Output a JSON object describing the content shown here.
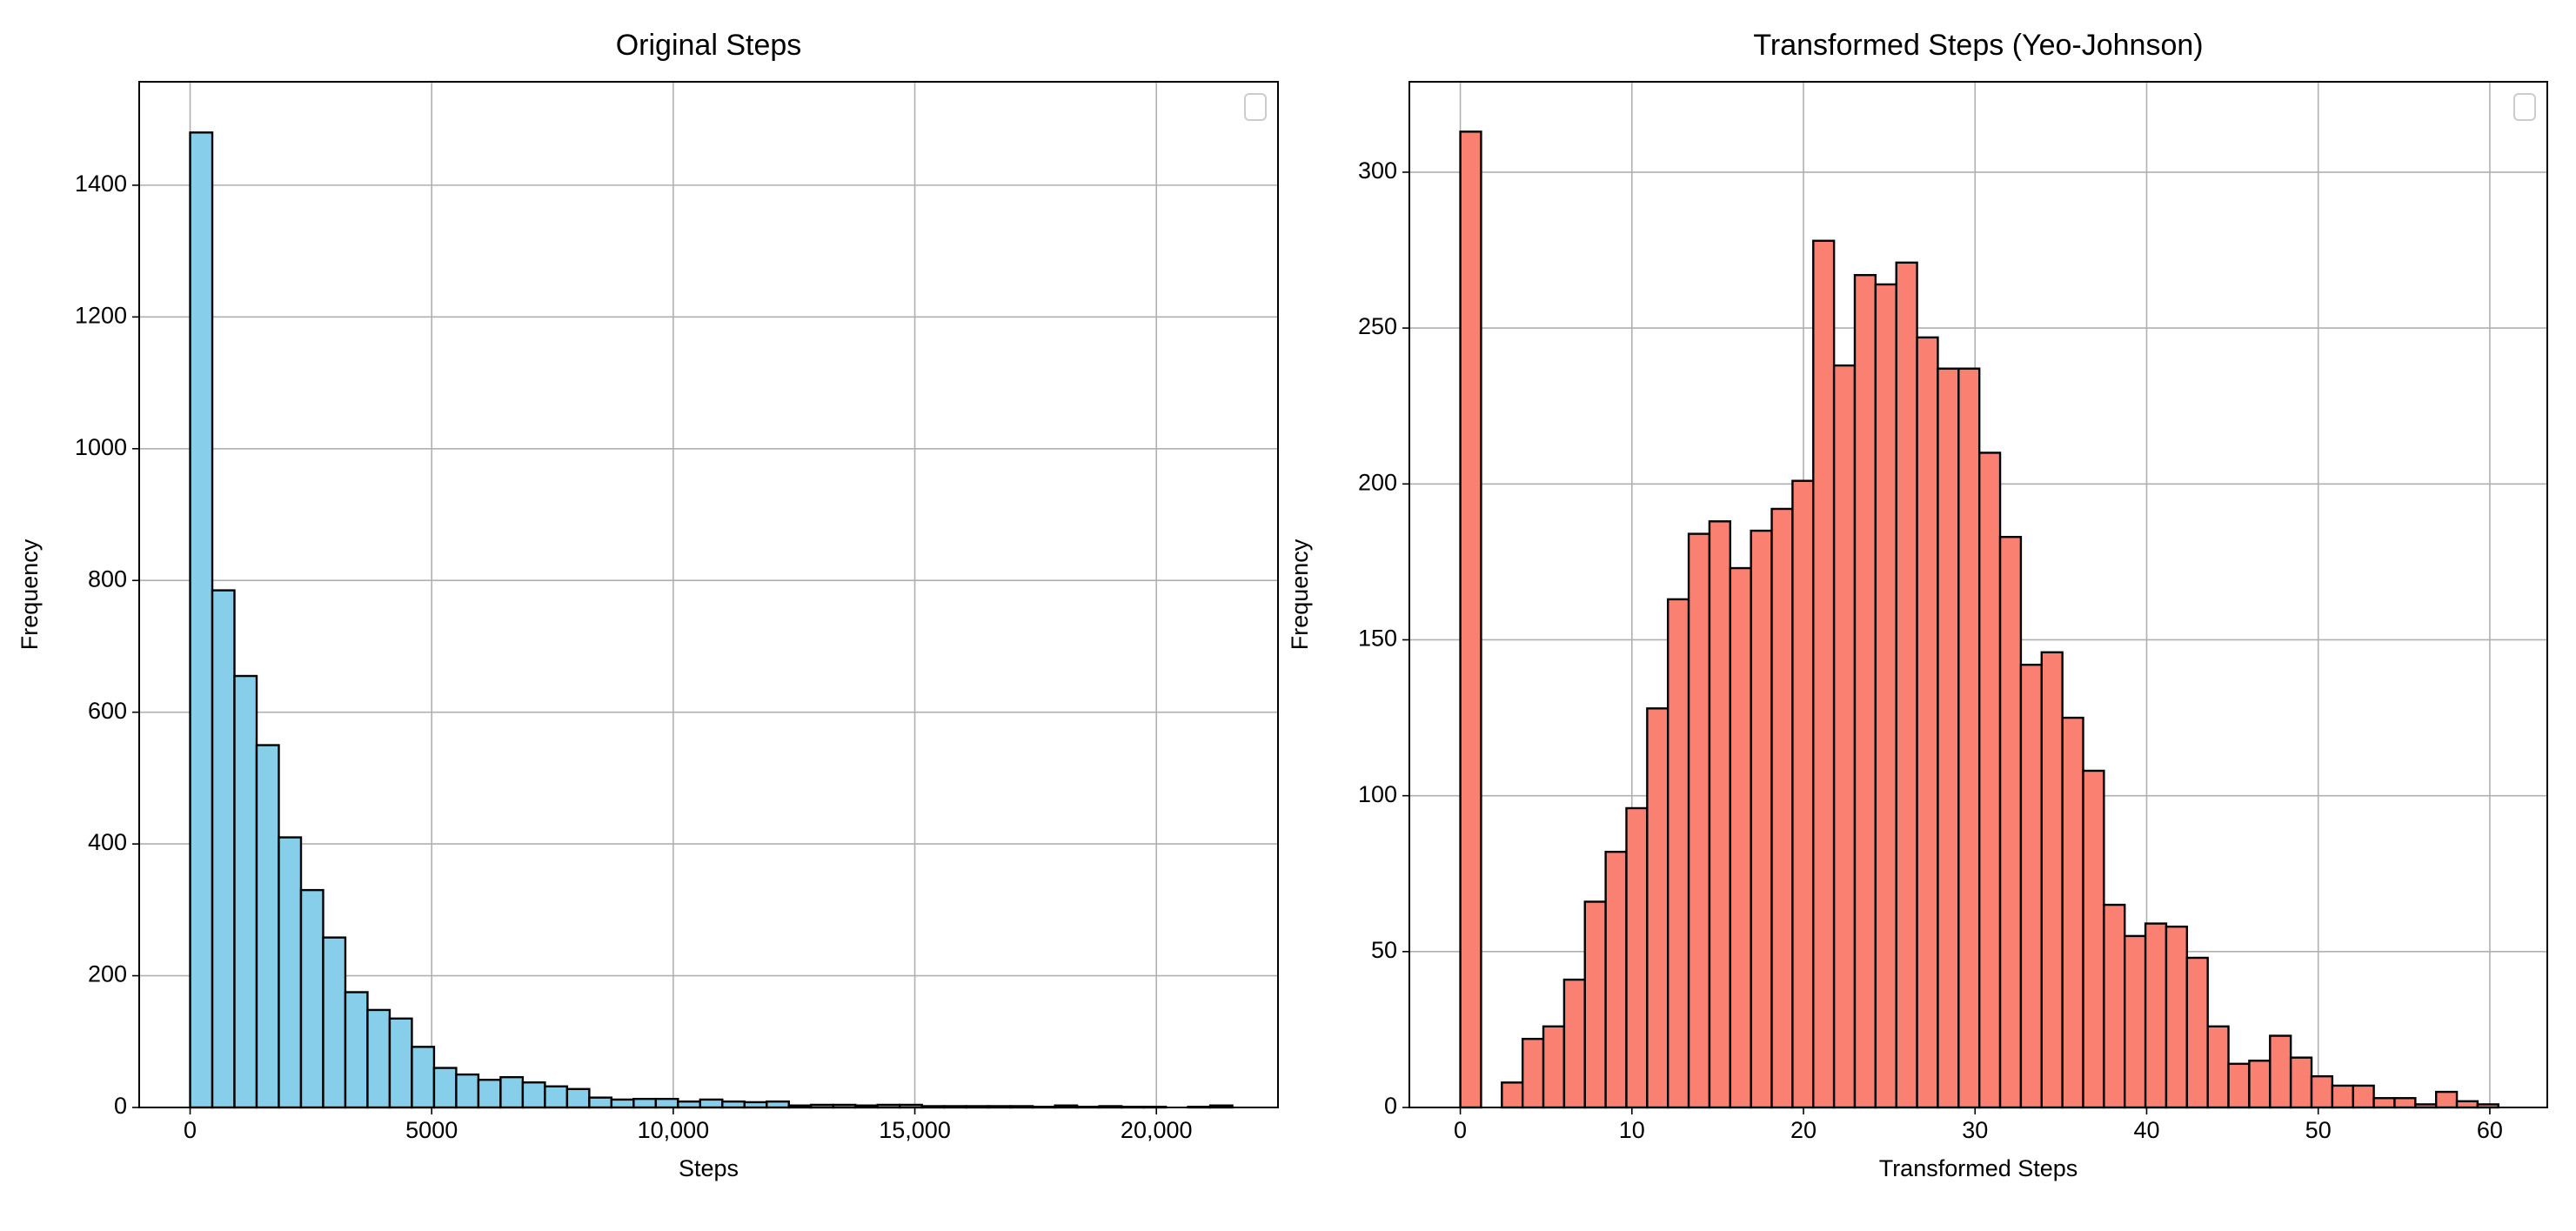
{
  "chart_data": [
    {
      "type": "histogram",
      "title": "Original Steps",
      "xlabel": "Steps",
      "ylabel": "Frequency",
      "bins": [
        0,
        459,
        918,
        1377,
        1836,
        2295,
        2754,
        3213,
        3672,
        4131,
        4590,
        5049,
        5508,
        5967,
        6426,
        6885,
        7344,
        7803,
        8262,
        8721,
        9180,
        9639,
        10098,
        10557,
        11016,
        11475,
        11934,
        12393,
        12852,
        13311,
        13770,
        14229,
        14688,
        15147,
        15606,
        16065,
        16524,
        16983,
        17442,
        17901,
        18360,
        18819,
        19278,
        19737,
        20196,
        20655,
        21114,
        21573
      ],
      "values": [
        1480,
        785,
        655,
        550,
        410,
        330,
        258,
        175,
        148,
        135,
        92,
        60,
        50,
        42,
        46,
        38,
        32,
        28,
        15,
        12,
        13,
        13,
        9,
        12,
        9,
        8,
        9,
        3,
        4,
        4,
        3,
        4,
        4,
        2,
        2,
        2,
        2,
        2,
        1,
        3,
        1,
        2,
        1,
        1,
        0,
        1,
        3
      ],
      "color": "#87ceeb",
      "edgecolor": "#000000",
      "xlim": [
        -1054,
        22517
      ],
      "ylim": [
        0,
        1557
      ],
      "xticks": [
        0,
        5000,
        {
          "value": 10000,
          "label": "10,000"
        },
        {
          "value": 15000,
          "label": "15,000"
        },
        {
          "value": 20000,
          "label": "20,000"
        }
      ],
      "yticks": [
        0,
        200,
        400,
        600,
        800,
        1000,
        1200,
        1400
      ],
      "grid": true,
      "legend": "upper right"
    },
    {
      "type": "histogram",
      "title": "Transformed Steps (Yeo-Johnson)",
      "xlabel": "Transformed Steps",
      "ylabel": "Frequency",
      "bins": [
        0,
        1.21,
        2.42,
        3.63,
        4.84,
        6.05,
        7.26,
        8.47,
        9.68,
        10.89,
        12.1,
        13.31,
        14.52,
        15.73,
        16.94,
        18.15,
        19.36,
        20.57,
        21.78,
        22.99,
        24.2,
        25.41,
        26.62,
        27.83,
        29.04,
        30.25,
        31.46,
        32.67,
        33.88,
        35.09,
        36.3,
        37.51,
        38.72,
        39.93,
        41.14,
        42.35,
        43.56,
        44.77,
        45.98,
        47.19,
        48.4,
        49.61,
        50.82,
        52.03,
        53.24,
        54.45,
        55.66,
        56.87,
        58.08,
        59.29,
        60.5
      ],
      "values": [
        313,
        0,
        8,
        22,
        26,
        41,
        66,
        82,
        96,
        128,
        163,
        184,
        188,
        173,
        185,
        192,
        201,
        278,
        238,
        267,
        264,
        271,
        247,
        237,
        237,
        210,
        183,
        142,
        146,
        125,
        108,
        65,
        55,
        59,
        58,
        48,
        26,
        14,
        15,
        23,
        16,
        10,
        7,
        7,
        3,
        3,
        1,
        5,
        2,
        1
      ],
      "color": "#fa8072",
      "edgecolor": "#000000",
      "xlim": [
        -2.97,
        63.35
      ],
      "ylim": [
        0,
        329
      ],
      "xticks": [
        0,
        10,
        20,
        30,
        40,
        50,
        60
      ],
      "yticks": [
        0,
        50,
        100,
        150,
        200,
        250,
        300
      ],
      "grid": true,
      "legend": "upper right"
    }
  ]
}
